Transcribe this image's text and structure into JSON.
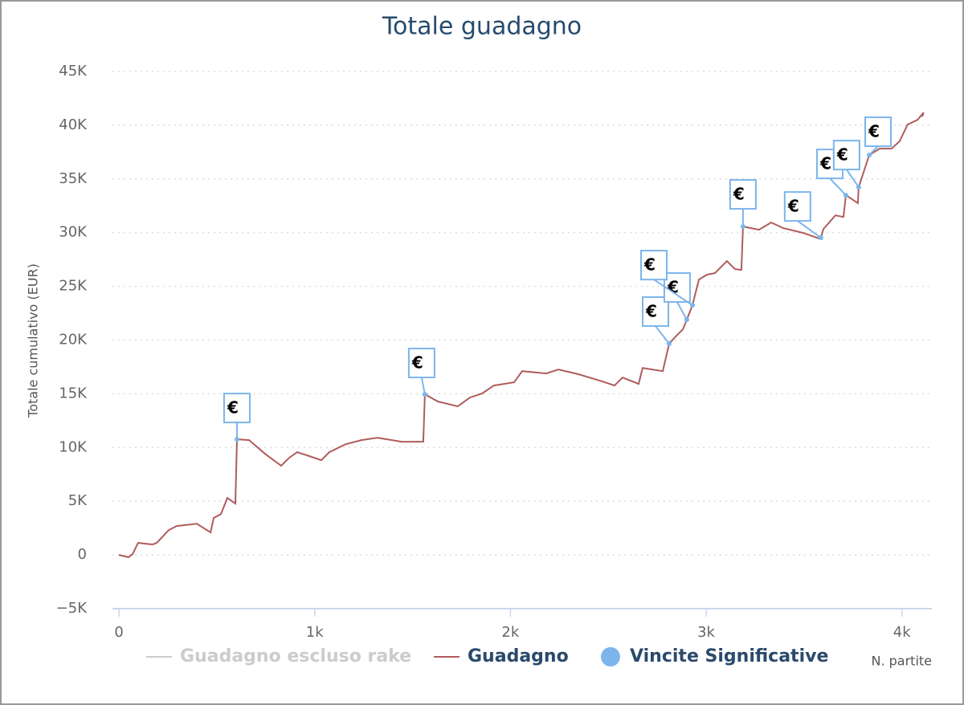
{
  "chart_data": {
    "type": "line",
    "title": "Totale guadagno",
    "x_label": "N. partite",
    "y_label": "Totale cumulativo (EUR)",
    "xlim": [
      -33,
      4153
    ],
    "ylim": [
      -5000,
      45000
    ],
    "xticks": [
      0,
      {
        "value": 1000,
        "label": "1k"
      },
      {
        "value": 2000,
        "label": "2k"
      },
      {
        "value": 3000,
        "label": "3k"
      },
      {
        "value": 4000,
        "label": "4k"
      }
    ],
    "yticks": [
      {
        "value": -5000,
        "label": "−5K"
      },
      0,
      {
        "value": 5000,
        "label": "5K"
      },
      {
        "value": 10000,
        "label": "10K"
      },
      {
        "value": 15000,
        "label": "15K"
      },
      {
        "value": 20000,
        "label": "20K"
      },
      {
        "value": 25000,
        "label": "25K"
      },
      {
        "value": 30000,
        "label": "30K"
      },
      {
        "value": 35000,
        "label": "35K"
      },
      {
        "value": 40000,
        "label": "40K"
      },
      {
        "value": 45000,
        "label": "45K"
      }
    ],
    "grid": true,
    "series": [
      {
        "name": "Guadagno escluso rake",
        "color": "#cccccc",
        "visible": false
      },
      {
        "name": "Guadagno",
        "color": "#b05c5c",
        "visible": true,
        "x": [
          0,
          49,
          70,
          98,
          172,
          193,
          254,
          295,
          398,
          468,
          484,
          521,
          554,
          595,
          603,
          665,
          747,
          829,
          870,
          911,
          972,
          1034,
          1075,
          1157,
          1239,
          1321,
          1444,
          1555,
          1563,
          1629,
          1731,
          1793,
          1855,
          1916,
          2019,
          2060,
          2183,
          2245,
          2347,
          2470,
          2532,
          2573,
          2655,
          2675,
          2778,
          2811,
          2840,
          2881,
          2901,
          2930,
          2963,
          3004,
          3045,
          3106,
          3147,
          3180,
          3188,
          3270,
          3332,
          3394,
          3496,
          3578,
          3586,
          3599,
          3660,
          3701,
          3714,
          3775,
          3779,
          3833,
          3886,
          3947,
          3988,
          4029,
          4080,
          4111,
          4103
        ],
        "values": [
          0,
          -220,
          75,
          1120,
          970,
          1120,
          2300,
          2690,
          2900,
          2100,
          3440,
          3800,
          5300,
          4780,
          10760,
          10690,
          9400,
          8300,
          9040,
          9570,
          9200,
          8820,
          9570,
          10300,
          10690,
          10910,
          10540,
          10540,
          14950,
          14280,
          13830,
          14650,
          15020,
          15770,
          16070,
          17110,
          16890,
          17260,
          16820,
          16140,
          15770,
          16510,
          15920,
          17410,
          17110,
          19660,
          20250,
          21000,
          21900,
          23240,
          25630,
          26080,
          26230,
          27350,
          26610,
          26530,
          30570,
          30270,
          30940,
          30420,
          29970,
          29450,
          29520,
          30340,
          31610,
          31460,
          33480,
          32740,
          34230,
          37220,
          37820,
          37820,
          38500,
          40060,
          40500,
          41180,
          40800
        ]
      },
      {
        "name": "Vincite Significative",
        "color": "#7cb5ec",
        "visible": true,
        "flag_title": "€",
        "x": [
          603,
          1563,
          2811,
          2901,
          2930,
          3188,
          3586,
          3714,
          3779,
          3833
        ],
        "values": [
          10760,
          14950,
          19660,
          21900,
          23240,
          30570,
          29520,
          33480,
          34230,
          37220
        ]
      }
    ]
  }
}
